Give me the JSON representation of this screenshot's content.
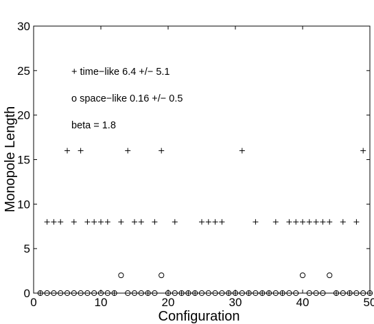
{
  "chart_data": {
    "type": "scatter",
    "title": "",
    "xlabel": "Configuration",
    "ylabel": "Monopole Length",
    "xlim": [
      0,
      50
    ],
    "ylim": [
      0,
      30
    ],
    "xticks": [
      0,
      10,
      20,
      30,
      40,
      50
    ],
    "yticks": [
      0,
      5,
      10,
      15,
      20,
      25,
      30
    ],
    "grid": false,
    "series": [
      {
        "marker": "plus",
        "x": [
          1,
          2,
          3,
          4,
          5,
          6,
          7,
          8,
          9,
          10,
          11,
          12,
          13,
          14,
          15,
          16,
          17,
          18,
          19,
          20,
          21,
          22,
          23,
          24,
          25,
          26,
          27,
          28,
          29,
          30,
          31,
          32,
          33,
          34,
          35,
          36,
          37,
          38,
          39,
          40,
          41,
          42,
          43,
          44,
          45,
          46,
          47,
          48,
          49,
          50
        ],
        "y": [
          0,
          8,
          8,
          8,
          16,
          8,
          16,
          8,
          8,
          8,
          8,
          0,
          8,
          16,
          8,
          8,
          0,
          8,
          16,
          0,
          8,
          0,
          0,
          0,
          8,
          8,
          8,
          8,
          0,
          0,
          16,
          0,
          8,
          0,
          0,
          8,
          0,
          8,
          8,
          8,
          8,
          8,
          8,
          8,
          0,
          8,
          0,
          8,
          16,
          0
        ]
      },
      {
        "marker": "circle",
        "x": [
          1,
          2,
          3,
          4,
          5,
          6,
          7,
          8,
          9,
          10,
          11,
          12,
          13,
          14,
          15,
          16,
          17,
          18,
          19,
          20,
          21,
          22,
          23,
          24,
          25,
          26,
          27,
          28,
          29,
          30,
          31,
          32,
          33,
          34,
          35,
          36,
          37,
          38,
          39,
          40,
          41,
          42,
          43,
          44,
          45,
          46,
          47,
          48,
          49,
          50
        ],
        "y": [
          0,
          0,
          0,
          0,
          0,
          0,
          0,
          0,
          0,
          0,
          0,
          0,
          2,
          0,
          0,
          0,
          0,
          0,
          2,
          0,
          0,
          0,
          0,
          0,
          0,
          0,
          0,
          0,
          0,
          0,
          0,
          0,
          0,
          0,
          0,
          0,
          0,
          0,
          0,
          2,
          0,
          0,
          0,
          2,
          0,
          0,
          0,
          0,
          0,
          0
        ]
      }
    ],
    "annotations": [
      {
        "text": "+ time−like      6.4 +/− 5.1",
        "position": "upper-left"
      },
      {
        "text": "o space−like  0.16 +/− 0.5",
        "position": "upper-left"
      },
      {
        "text": "beta = 1.8",
        "position": "upper-left"
      }
    ]
  }
}
